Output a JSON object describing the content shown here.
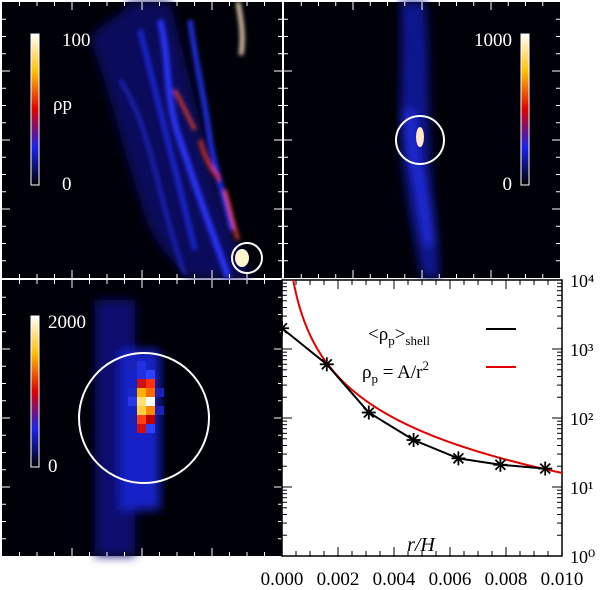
{
  "chart_data": [
    {
      "type": "heatmap",
      "panel": "top-left",
      "colorbar": {
        "label": "ρp",
        "min": 0,
        "max": 100,
        "tick_labels": [
          "100",
          "0"
        ]
      },
      "circle": "bottom-right"
    },
    {
      "type": "heatmap",
      "panel": "top-right",
      "colorbar": {
        "label": "",
        "min": 0,
        "max": 1000,
        "tick_labels": [
          "1000",
          "0"
        ]
      },
      "circle": "center"
    },
    {
      "type": "heatmap",
      "panel": "bottom-left",
      "colorbar": {
        "label": "",
        "min": 0,
        "max": 2000,
        "tick_labels": [
          "2000",
          "0"
        ]
      },
      "circle": "center"
    },
    {
      "type": "line",
      "panel": "bottom-right",
      "xlabel": "r/H",
      "yscale": "log",
      "xlim": [
        0.0,
        0.01
      ],
      "ylim": [
        1,
        10000
      ],
      "x_tick_labels": [
        "0.000",
        "0.002",
        "0.004",
        "0.006",
        "0.008",
        "0.010"
      ],
      "y_tick_labels": [
        "10⁰",
        "10¹",
        "10²",
        "10³",
        "10⁴"
      ],
      "legend_position": "top-right",
      "series": [
        {
          "name": "<ρp>shell",
          "color": "#000000",
          "marker": "asterisk",
          "x": [
            0.0,
            0.0016,
            0.0031,
            0.0047,
            0.0063,
            0.0078,
            0.0094
          ],
          "y": [
            2000,
            600,
            120,
            48,
            26,
            21,
            18.5
          ]
        },
        {
          "name": "ρp = A/r²",
          "color": "#e00000",
          "function": "inverse-square",
          "A": 0.0016
        }
      ],
      "legend": {
        "entry1_main": "<ρ",
        "entry1_sub": "p",
        "entry1_tail": ">",
        "entry1_sub2": "shell",
        "entry2_main": "ρ",
        "entry2_sub": "p",
        "entry2_tail": " = A/r",
        "entry2_sup": "2"
      }
    }
  ]
}
